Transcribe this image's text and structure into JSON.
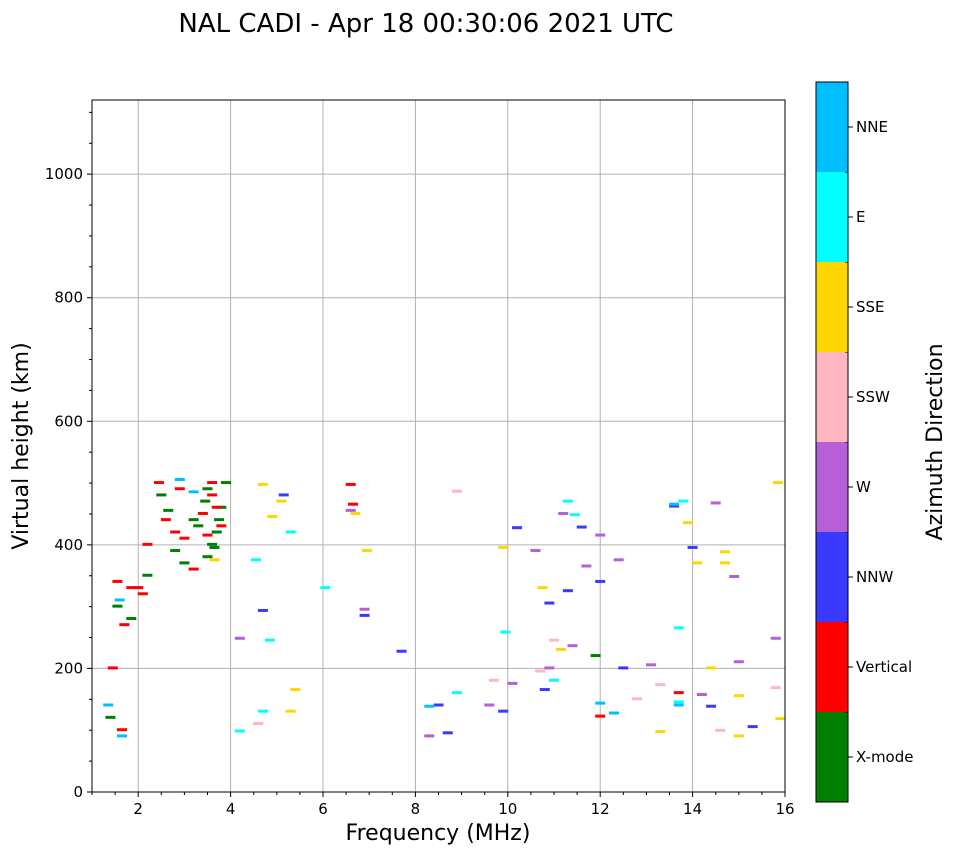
{
  "chart_data": {
    "type": "scatter",
    "title": "NAL CADI - Apr 18 00:30:06 2021 UTC",
    "xlabel": "Frequency (MHz)",
    "ylabel": "Virtual height (km)",
    "xlim": [
      1.0,
      16.0
    ],
    "ylim": [
      0,
      1120
    ],
    "xticks": [
      2,
      4,
      6,
      8,
      10,
      12,
      14,
      16
    ],
    "yticks": [
      0,
      200,
      400,
      600,
      800,
      1000
    ],
    "grid": true,
    "colorbar": {
      "label": "Azimuth Direction",
      "categories": [
        {
          "name": "X-mode",
          "color": "#008000"
        },
        {
          "name": "Vertical",
          "color": "#ff0000"
        },
        {
          "name": "NNW",
          "color": "#3a3aff"
        },
        {
          "name": "W",
          "color": "#b65fd6"
        },
        {
          "name": "SSW",
          "color": "#ffb6c1"
        },
        {
          "name": "SSE",
          "color": "#ffd700"
        },
        {
          "name": "E",
          "color": "#00ffff"
        },
        {
          "name": "NNE",
          "color": "#00bfff"
        }
      ]
    },
    "series": [
      {
        "name": "X-mode",
        "points": [
          [
            1.55,
            300
          ],
          [
            1.85,
            280
          ],
          [
            2.5,
            480
          ],
          [
            2.8,
            390
          ],
          [
            3.0,
            370
          ],
          [
            3.2,
            440
          ],
          [
            3.5,
            380
          ],
          [
            3.6,
            400
          ],
          [
            3.7,
            420
          ],
          [
            3.8,
            460
          ],
          [
            3.9,
            500
          ],
          [
            3.5,
            490
          ],
          [
            3.3,
            430
          ],
          [
            3.65,
            395
          ],
          [
            1.4,
            120
          ],
          [
            11.9,
            220
          ],
          [
            2.2,
            350
          ],
          [
            2.65,
            455
          ],
          [
            3.75,
            440
          ],
          [
            3.45,
            470
          ]
        ]
      },
      {
        "name": "Vertical",
        "points": [
          [
            1.65,
            100
          ],
          [
            1.55,
            340
          ],
          [
            1.85,
            330
          ],
          [
            2.0,
            330
          ],
          [
            2.2,
            400
          ],
          [
            2.45,
            500
          ],
          [
            2.6,
            440
          ],
          [
            2.8,
            420
          ],
          [
            3.0,
            410
          ],
          [
            3.2,
            360
          ],
          [
            3.4,
            450
          ],
          [
            3.6,
            480
          ],
          [
            3.7,
            460
          ],
          [
            3.8,
            430
          ],
          [
            6.6,
            497
          ],
          [
            6.65,
            465
          ],
          [
            12.0,
            122
          ],
          [
            13.7,
            160
          ],
          [
            1.45,
            200
          ],
          [
            2.1,
            320
          ],
          [
            2.9,
            490
          ],
          [
            3.5,
            415
          ],
          [
            3.6,
            500
          ],
          [
            1.7,
            270
          ]
        ]
      },
      {
        "name": "NNW",
        "points": [
          [
            4.7,
            293
          ],
          [
            5.15,
            480
          ],
          [
            6.9,
            285
          ],
          [
            7.7,
            227
          ],
          [
            8.5,
            140
          ],
          [
            10.2,
            427
          ],
          [
            10.9,
            305
          ],
          [
            11.3,
            325
          ],
          [
            11.6,
            428
          ],
          [
            12.5,
            200
          ],
          [
            13.6,
            462
          ],
          [
            14.0,
            395
          ],
          [
            14.4,
            138
          ],
          [
            15.3,
            105
          ],
          [
            9.9,
            130
          ],
          [
            8.7,
            95
          ],
          [
            10.8,
            165
          ],
          [
            12.0,
            340
          ]
        ]
      },
      {
        "name": "W",
        "points": [
          [
            4.2,
            248
          ],
          [
            6.6,
            455
          ],
          [
            6.9,
            295
          ],
          [
            8.3,
            90
          ],
          [
            9.6,
            140
          ],
          [
            10.9,
            200
          ],
          [
            11.2,
            450
          ],
          [
            11.4,
            236
          ],
          [
            12.0,
            415
          ],
          [
            13.1,
            205
          ],
          [
            14.2,
            157
          ],
          [
            14.5,
            467
          ],
          [
            14.9,
            348
          ],
          [
            15.0,
            210
          ],
          [
            15.8,
            248
          ],
          [
            10.1,
            175
          ],
          [
            11.7,
            365
          ],
          [
            12.4,
            375
          ],
          [
            10.6,
            390
          ]
        ]
      },
      {
        "name": "SSW",
        "points": [
          [
            4.6,
            110
          ],
          [
            8.9,
            486
          ],
          [
            13.3,
            173
          ],
          [
            14.6,
            99
          ],
          [
            15.8,
            168
          ],
          [
            10.7,
            195
          ],
          [
            11.0,
            245
          ],
          [
            9.7,
            180
          ],
          [
            12.8,
            150
          ]
        ]
      },
      {
        "name": "SSE",
        "points": [
          [
            3.65,
            375
          ],
          [
            4.7,
            497
          ],
          [
            5.1,
            470
          ],
          [
            5.4,
            165
          ],
          [
            6.7,
            450
          ],
          [
            6.95,
            390
          ],
          [
            9.9,
            395
          ],
          [
            11.15,
            230
          ],
          [
            13.3,
            97
          ],
          [
            13.9,
            435
          ],
          [
            14.1,
            370
          ],
          [
            14.4,
            200
          ],
          [
            14.7,
            388
          ],
          [
            14.7,
            370
          ],
          [
            15.0,
            155
          ],
          [
            15.0,
            90
          ],
          [
            15.85,
            500
          ],
          [
            15.9,
            118
          ],
          [
            5.3,
            130
          ],
          [
            4.9,
            445
          ],
          [
            10.75,
            330
          ]
        ]
      },
      {
        "name": "E",
        "points": [
          [
            4.2,
            98
          ],
          [
            4.7,
            130
          ],
          [
            4.85,
            245
          ],
          [
            5.3,
            420
          ],
          [
            8.9,
            160
          ],
          [
            9.95,
            258
          ],
          [
            11.0,
            180
          ],
          [
            11.3,
            470
          ],
          [
            11.45,
            448
          ],
          [
            13.7,
            145
          ],
          [
            13.8,
            470
          ],
          [
            13.7,
            265
          ],
          [
            4.55,
            375
          ],
          [
            6.05,
            330
          ]
        ]
      },
      {
        "name": "NNE",
        "points": [
          [
            1.65,
            90
          ],
          [
            3.2,
            485
          ],
          [
            8.3,
            138
          ],
          [
            12.3,
            127
          ],
          [
            13.7,
            140
          ],
          [
            12.0,
            143
          ],
          [
            13.6,
            465
          ],
          [
            2.9,
            505
          ],
          [
            1.35,
            140
          ],
          [
            1.6,
            310
          ]
        ]
      }
    ]
  }
}
